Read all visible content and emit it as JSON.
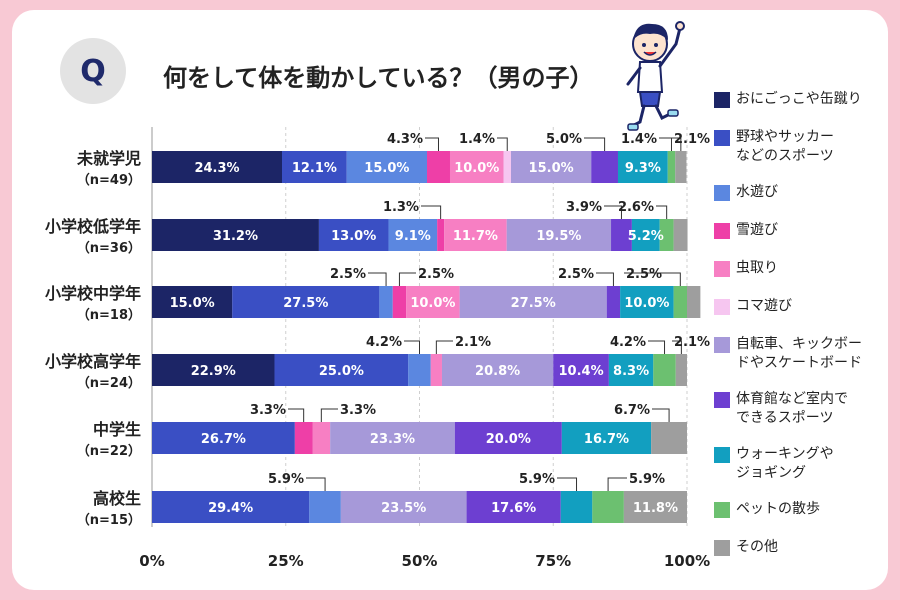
{
  "header": {
    "badge": "Q",
    "title": "何をして体を動かしている？（男の子）"
  },
  "chart_data": {
    "type": "bar",
    "orientation": "horizontal",
    "stacked": true,
    "xlim": [
      0,
      100
    ],
    "x_ticks": [
      "0%",
      "25%",
      "50%",
      "75%",
      "100%"
    ],
    "grid": true,
    "legend_position": "right",
    "categories": [
      {
        "name": "未就学児",
        "n": "（n=49）"
      },
      {
        "name": "小学校低学年",
        "n": "（n=36）"
      },
      {
        "name": "小学校中学年",
        "n": "（n=18）"
      },
      {
        "name": "小学校高学年",
        "n": "（n=24）"
      },
      {
        "name": "中学生",
        "n": "（n=22）"
      },
      {
        "name": "高校生",
        "n": "（n=15）"
      }
    ],
    "series": [
      {
        "name": "おにごっこや缶蹴り",
        "color": "#1c2566",
        "values": [
          24.3,
          31.2,
          15.0,
          22.9,
          0,
          0
        ]
      },
      {
        "name": "野球やサッカー\nなどのスポーツ",
        "color": "#3a4fc4",
        "values": [
          12.1,
          13.0,
          27.5,
          25.0,
          26.7,
          29.4
        ]
      },
      {
        "name": "水遊び",
        "color": "#5b87e0",
        "values": [
          15.0,
          9.1,
          2.5,
          4.2,
          0,
          5.9
        ]
      },
      {
        "name": "雪遊び",
        "color": "#ee3fa7",
        "values": [
          4.3,
          1.3,
          2.5,
          0,
          3.3,
          0
        ]
      },
      {
        "name": "虫取り",
        "color": "#f77fc3",
        "values": [
          10.0,
          11.7,
          10.0,
          2.1,
          3.3,
          0
        ]
      },
      {
        "name": "コマ遊び",
        "color": "#f6c6f0",
        "values": [
          1.4,
          0,
          0,
          0,
          0,
          0
        ]
      },
      {
        "name": "自転車、キックボー\nドやスケートボード",
        "color": "#a699d9",
        "values": [
          15.0,
          19.5,
          27.5,
          20.8,
          23.3,
          23.5
        ]
      },
      {
        "name": "体育館など室内で\nできるスポーツ",
        "color": "#6d3fd1",
        "values": [
          5.0,
          3.9,
          2.5,
          10.4,
          20.0,
          17.6
        ]
      },
      {
        "name": "ウォーキングや\nジョギング",
        "color": "#129fc0",
        "values": [
          9.3,
          5.2,
          10.0,
          8.3,
          16.7,
          5.9
        ]
      },
      {
        "name": "ペットの散歩",
        "color": "#6cc070",
        "values": [
          1.4,
          2.6,
          2.5,
          4.2,
          0,
          5.9
        ]
      },
      {
        "name": "その他",
        "color": "#9e9e9e",
        "values": [
          2.1,
          2.6,
          2.5,
          2.1,
          6.7,
          11.8
        ]
      }
    ],
    "labels": [
      [
        {
          "s": 0,
          "text": "24.3%",
          "mode": "in"
        },
        {
          "s": 1,
          "text": "12.1%",
          "mode": "in"
        },
        {
          "s": 2,
          "text": "15.0%",
          "mode": "in"
        },
        {
          "s": 3,
          "text": "4.3%",
          "mode": "out",
          "side": "left",
          "anchor": 425
        },
        {
          "s": 4,
          "text": "10.0%",
          "mode": "in"
        },
        {
          "s": 5,
          "text": "1.4%",
          "mode": "out",
          "side": "left",
          "anchor": 497
        },
        {
          "s": 6,
          "text": "15.0%",
          "mode": "in"
        },
        {
          "s": 7,
          "text": "5.0%",
          "mode": "out",
          "side": "left",
          "anchor": 584
        },
        {
          "s": 8,
          "text": "9.3%",
          "mode": "in"
        },
        {
          "s": 9,
          "text": "1.4%",
          "mode": "out",
          "side": "left",
          "anchor": 659
        },
        {
          "s": 10,
          "text": "2.1%",
          "mode": "out",
          "side": "right",
          "anchor": 672
        }
      ],
      [
        {
          "s": 0,
          "text": "31.2%",
          "mode": "in"
        },
        {
          "s": 1,
          "text": "13.0%",
          "mode": "in"
        },
        {
          "s": 2,
          "text": "9.1%",
          "mode": "in"
        },
        {
          "s": 3,
          "text": "1.3%",
          "mode": "out",
          "side": "left",
          "anchor": 421
        },
        {
          "s": 4,
          "text": "11.7%",
          "mode": "in"
        },
        {
          "s": 6,
          "text": "19.5%",
          "mode": "in"
        },
        {
          "s": 7,
          "text": "3.9%",
          "mode": "out",
          "side": "left",
          "anchor": 604
        },
        {
          "s": 8,
          "text": "5.2%",
          "mode": "in"
        },
        {
          "s": 9,
          "text": "2.6%",
          "mode": "out",
          "side": "left",
          "anchor": 656
        }
      ],
      [
        {
          "s": 0,
          "text": "15.0%",
          "mode": "in"
        },
        {
          "s": 1,
          "text": "27.5%",
          "mode": "in"
        },
        {
          "s": 2,
          "text": "2.5%",
          "mode": "out",
          "side": "left",
          "anchor": 368
        },
        {
          "s": 3,
          "text": "2.5%",
          "mode": "out",
          "side": "right",
          "anchor": 416
        },
        {
          "s": 4,
          "text": "10.0%",
          "mode": "in"
        },
        {
          "s": 6,
          "text": "27.5%",
          "mode": "in"
        },
        {
          "s": 7,
          "text": "2.5%",
          "mode": "out",
          "side": "left",
          "anchor": 596
        },
        {
          "s": 8,
          "text": "10.0%",
          "mode": "in"
        },
        {
          "s": 9,
          "text": "2.5%",
          "mode": "out",
          "side": "right",
          "anchor": 624
        }
      ],
      [
        {
          "s": 0,
          "text": "22.9%",
          "mode": "in"
        },
        {
          "s": 1,
          "text": "25.0%",
          "mode": "in"
        },
        {
          "s": 2,
          "text": "4.2%",
          "mode": "out",
          "side": "left",
          "anchor": 404
        },
        {
          "s": 4,
          "text": "2.1%",
          "mode": "out",
          "side": "right",
          "anchor": 453
        },
        {
          "s": 6,
          "text": "20.8%",
          "mode": "in"
        },
        {
          "s": 7,
          "text": "10.4%",
          "mode": "in"
        },
        {
          "s": 8,
          "text": "8.3%",
          "mode": "in"
        },
        {
          "s": 9,
          "text": "4.2%",
          "mode": "out",
          "side": "left",
          "anchor": 648
        },
        {
          "s": 10,
          "text": "2.1%",
          "mode": "out",
          "side": "right",
          "anchor": 672
        }
      ],
      [
        {
          "s": 1,
          "text": "26.7%",
          "mode": "in"
        },
        {
          "s": 3,
          "text": "3.3%",
          "mode": "out",
          "side": "left",
          "anchor": 288
        },
        {
          "s": 4,
          "text": "3.3%",
          "mode": "out",
          "side": "right",
          "anchor": 338
        },
        {
          "s": 6,
          "text": "23.3%",
          "mode": "in"
        },
        {
          "s": 7,
          "text": "20.0%",
          "mode": "in"
        },
        {
          "s": 8,
          "text": "16.7%",
          "mode": "in"
        },
        {
          "s": 10,
          "text": "6.7%",
          "mode": "out",
          "side": "left",
          "anchor": 652
        }
      ],
      [
        {
          "s": 1,
          "text": "29.4%",
          "mode": "in"
        },
        {
          "s": 2,
          "text": "5.9%",
          "mode": "out",
          "side": "left",
          "anchor": 306
        },
        {
          "s": 6,
          "text": "23.5%",
          "mode": "in"
        },
        {
          "s": 7,
          "text": "17.6%",
          "mode": "in"
        },
        {
          "s": 8,
          "text": "5.9%",
          "mode": "out",
          "side": "left",
          "anchor": 557
        },
        {
          "s": 9,
          "text": "5.9%",
          "mode": "out",
          "side": "right",
          "anchor": 627
        },
        {
          "s": 10,
          "text": "11.8%",
          "mode": "in"
        }
      ]
    ]
  }
}
